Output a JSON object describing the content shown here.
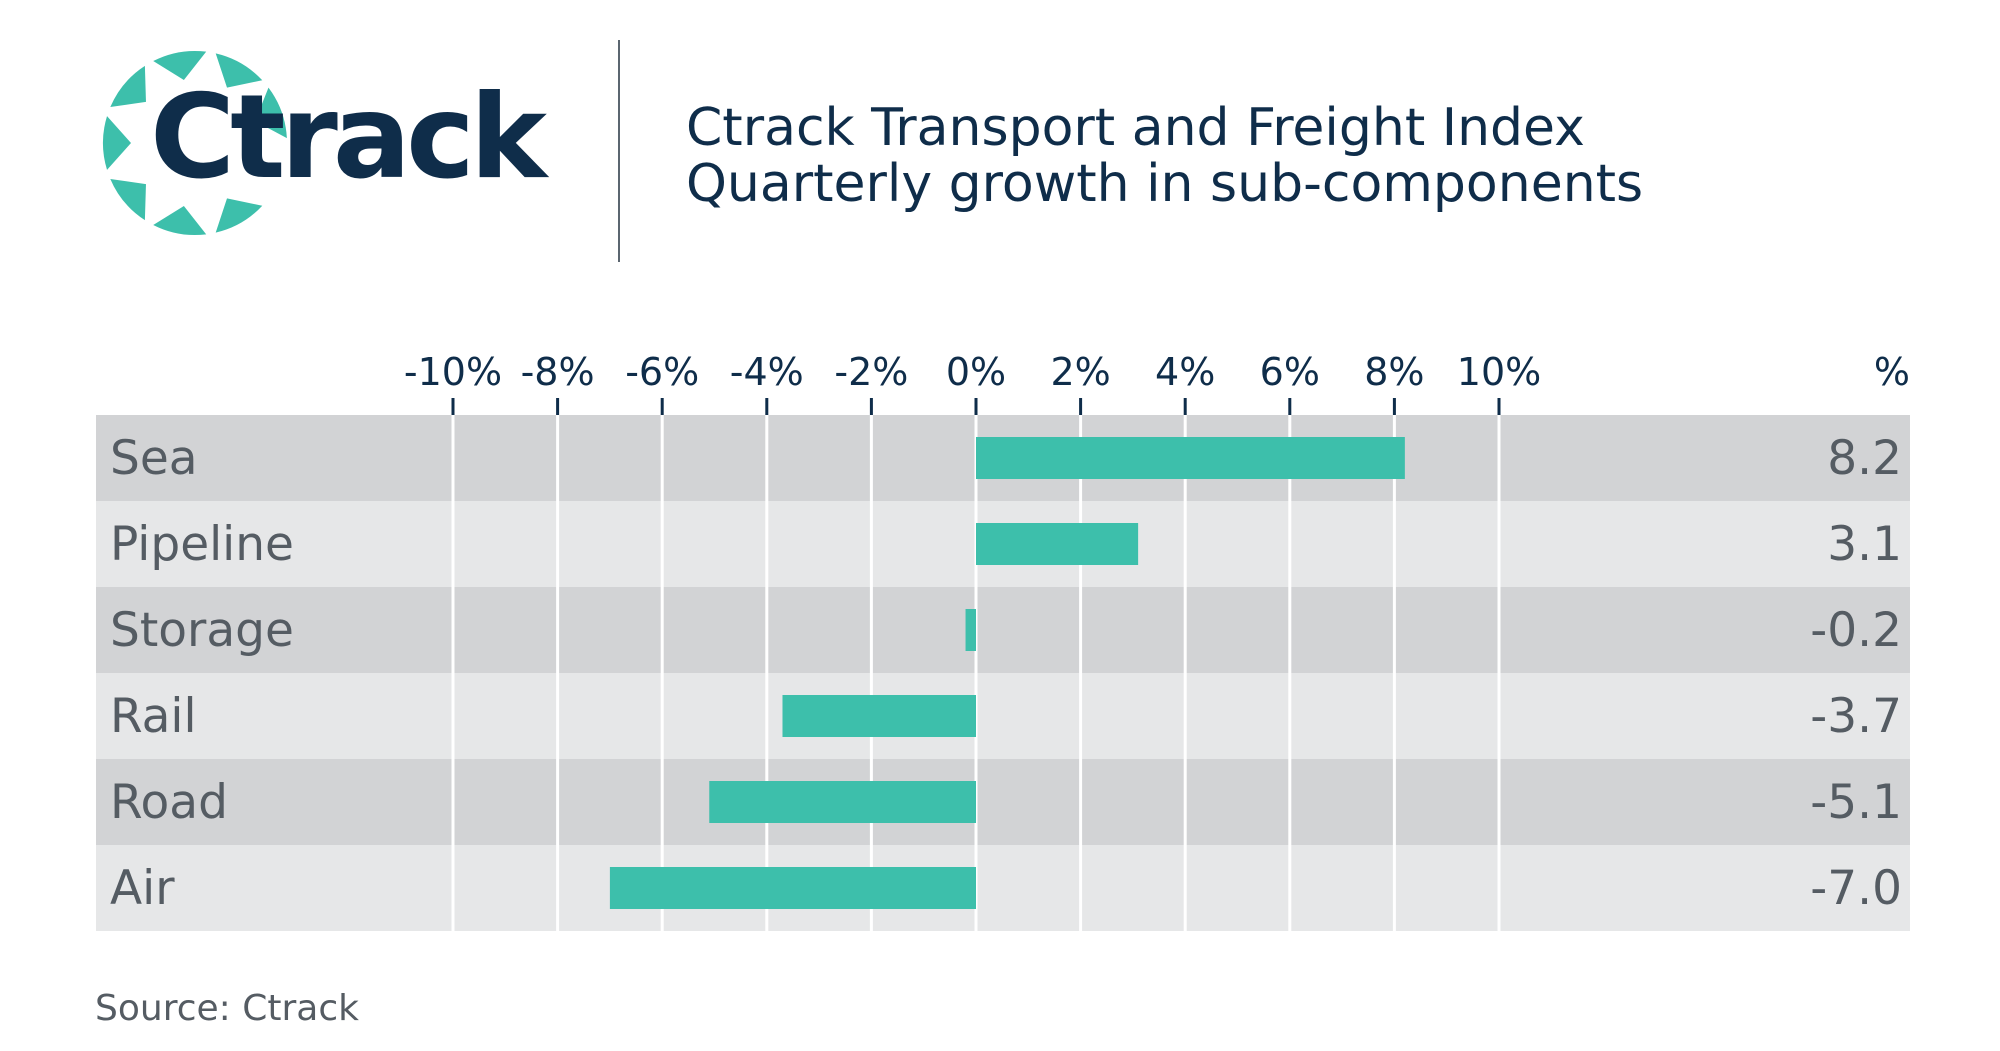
{
  "logo": {
    "text": "Ctrack",
    "color_ring": "#3dbfab",
    "color_text": "#0f2d4a"
  },
  "header": {
    "title_line1": "Ctrack Transport and Freight Index",
    "title_line2": "Quarterly growth in sub-components"
  },
  "source": "Source: Ctrack",
  "colors": {
    "bar": "#3dbfab",
    "row_dark": "#d2d3d5",
    "row_light": "#e6e7e8",
    "text_dark": "#0f2d4a",
    "text_grey": "#555c63"
  },
  "chart_data": {
    "type": "bar",
    "orientation": "horizontal",
    "categories": [
      "Sea",
      "Pipeline",
      "Storage",
      "Rail",
      "Road",
      "Air"
    ],
    "values": [
      8.2,
      3.1,
      -0.2,
      -3.7,
      -5.1,
      -7.0
    ],
    "value_labels": [
      "8.2",
      "3.1",
      "-0.2",
      "-3.7",
      "-5.1",
      "-7.0"
    ],
    "value_column_header": "%",
    "xlim": [
      -10,
      10
    ],
    "ticks": [
      -10,
      -8,
      -6,
      -4,
      -2,
      0,
      2,
      4,
      6,
      8,
      10
    ],
    "tick_labels": [
      "-10%",
      "-8%",
      "-6%",
      "-4%",
      "-2%",
      "0%",
      "2%",
      "4%",
      "6%",
      "8%",
      "10%"
    ],
    "grid": true
  }
}
